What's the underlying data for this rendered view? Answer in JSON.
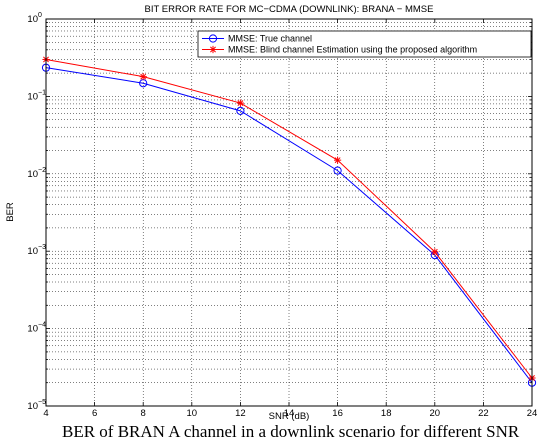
{
  "chart_data": {
    "type": "line",
    "title": "BIT ERROR RATE FOR MC−CDMA (DOWNLINK): BRANA − MMSE",
    "xlabel": "SNR (dB)",
    "ylabel": "BER",
    "xlim": [
      4,
      24
    ],
    "ylim": [
      1e-05,
      1
    ],
    "yscale": "log",
    "grid": true,
    "legend_position": "top-right",
    "xticks": [
      "4",
      "6",
      "8",
      "10",
      "12",
      "14",
      "16",
      "18",
      "20",
      "22",
      "24"
    ],
    "yticks": [
      {
        "mantissa": "10",
        "exp": "0"
      },
      {
        "mantissa": "10",
        "exp": "−1"
      },
      {
        "mantissa": "10",
        "exp": "−2"
      },
      {
        "mantissa": "10",
        "exp": "−3"
      },
      {
        "mantissa": "10",
        "exp": "−4"
      },
      {
        "mantissa": "10",
        "exp": "−5"
      }
    ],
    "x": [
      4,
      8,
      12,
      16,
      20,
      24
    ],
    "series": [
      {
        "name": "MMSE: True channel",
        "color": "#0000ff",
        "marker": "circle",
        "values": [
          0.235,
          0.148,
          0.065,
          0.011,
          0.00089,
          2e-05
        ]
      },
      {
        "name": "MMSE: Blind channel Estimation using the proposed algorithm",
        "color": "#ff0000",
        "marker": "star",
        "values": [
          0.3,
          0.18,
          0.082,
          0.015,
          0.00098,
          2.3e-05
        ]
      }
    ]
  },
  "caption": "BER of BRAN A channel in a downlink scenario for different SNR"
}
